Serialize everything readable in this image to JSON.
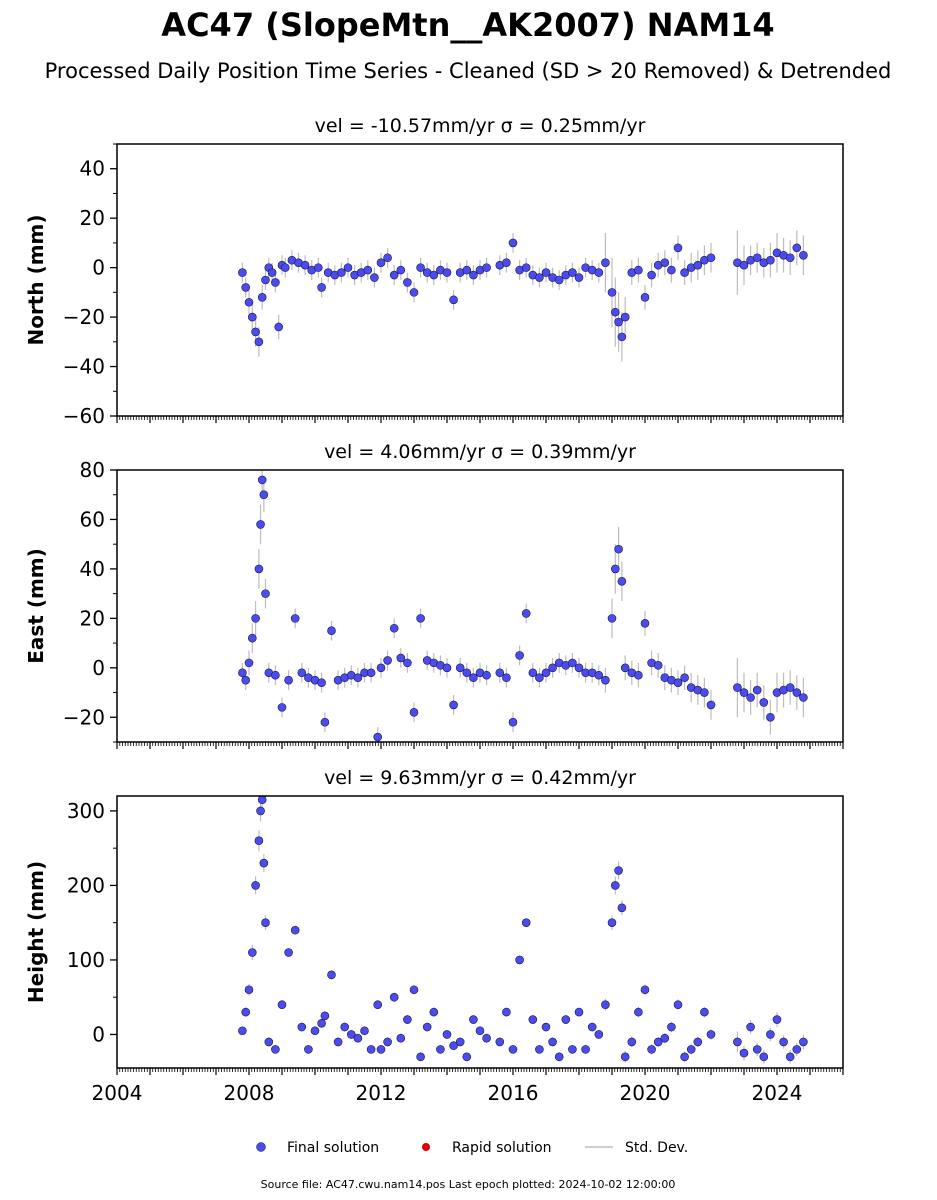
{
  "title": "AC47 (SlopeMtn__AK2007) NAM14",
  "subtitle": "Processed Daily Position Time Series - Cleaned (SD > 20 Removed) & Detrended",
  "legend": {
    "final": "Final solution",
    "rapid": "Rapid solution",
    "std": "Std. Dev."
  },
  "footer": "Source file: AC47.cwu.nam14.pos  Last epoch plotted: 2024-10-02 12:00:00",
  "colors": {
    "final": "#4b4bf0",
    "rapid": "#e00000",
    "std": "#bdbdbd",
    "edge": "#1a1a40"
  },
  "chart_data": [
    {
      "type": "scatter",
      "panel_title": "vel = -10.57mm/yr   σ = 0.25mm/yr",
      "ylabel": "North (mm)",
      "xlim": [
        2004,
        2026
      ],
      "ylim": [
        -60,
        50
      ],
      "yticks": [
        -60,
        -40,
        -20,
        0,
        20,
        40
      ],
      "xticks": [
        2004,
        2008,
        2012,
        2016,
        2020,
        2024
      ],
      "show_x_tick_labels": false,
      "series": [
        {
          "name": "Final solution",
          "x": [
            2007.8,
            2007.9,
            2008.0,
            2008.1,
            2008.2,
            2008.3,
            2008.4,
            2008.5,
            2008.6,
            2008.7,
            2008.8,
            2008.9,
            2009.0,
            2009.1,
            2009.3,
            2009.5,
            2009.7,
            2009.9,
            2010.1,
            2010.2,
            2010.4,
            2010.6,
            2010.8,
            2011.0,
            2011.2,
            2011.4,
            2011.6,
            2011.8,
            2012.0,
            2012.2,
            2012.4,
            2012.6,
            2012.8,
            2013.0,
            2013.2,
            2013.4,
            2013.6,
            2013.8,
            2014.0,
            2014.2,
            2014.4,
            2014.6,
            2014.8,
            2015.0,
            2015.2,
            2015.6,
            2015.8,
            2016.0,
            2016.2,
            2016.4,
            2016.6,
            2016.8,
            2017.0,
            2017.2,
            2017.4,
            2017.6,
            2017.8,
            2018.0,
            2018.2,
            2018.4,
            2018.6,
            2018.8,
            2019.0,
            2019.1,
            2019.2,
            2019.3,
            2019.4,
            2019.6,
            2019.8,
            2020.0,
            2020.2,
            2020.4,
            2020.6,
            2020.8,
            2021.0,
            2021.2,
            2021.4,
            2021.6,
            2021.8,
            2022.0,
            2022.8,
            2023.0,
            2023.2,
            2023.4,
            2023.6,
            2023.8,
            2024.0,
            2024.2,
            2024.4,
            2024.6,
            2024.8
          ],
          "y": [
            -2,
            -8,
            -14,
            -20,
            -26,
            -30,
            -12,
            -5,
            0,
            -2,
            -6,
            -24,
            1,
            0,
            3,
            2,
            1,
            -1,
            0,
            -8,
            -2,
            -3,
            -2,
            0,
            -3,
            -2,
            -1,
            -4,
            2,
            4,
            -3,
            -1,
            -6,
            -10,
            0,
            -2,
            -3,
            -1,
            -2,
            -13,
            -2,
            -1,
            -3,
            -1,
            0,
            1,
            2,
            10,
            -1,
            0,
            -3,
            -4,
            -2,
            -4,
            -5,
            -3,
            -2,
            -4,
            0,
            -1,
            -2,
            2,
            -10,
            -18,
            -22,
            -28,
            -20,
            -2,
            -1,
            -12,
            -3,
            1,
            2,
            -1,
            8,
            -2,
            0,
            1,
            3,
            4,
            2,
            1,
            3,
            4,
            2,
            3,
            6,
            5,
            4,
            8,
            5
          ],
          "err": [
            4,
            4,
            5,
            6,
            6,
            6,
            5,
            4,
            4,
            4,
            4,
            5,
            4,
            4,
            4,
            4,
            4,
            4,
            4,
            4,
            4,
            4,
            4,
            4,
            4,
            4,
            4,
            4,
            4,
            4,
            4,
            4,
            4,
            4,
            4,
            4,
            4,
            4,
            4,
            4,
            4,
            4,
            4,
            4,
            4,
            4,
            4,
            4,
            4,
            4,
            4,
            4,
            4,
            4,
            4,
            4,
            4,
            4,
            4,
            4,
            4,
            12,
            14,
            14,
            12,
            10,
            8,
            5,
            5,
            5,
            5,
            5,
            5,
            5,
            5,
            5,
            6,
            6,
            6,
            6,
            13,
            8,
            6,
            6,
            6,
            7,
            8,
            7,
            7,
            7,
            8
          ]
        }
      ]
    },
    {
      "type": "scatter",
      "panel_title": "vel = 4.06mm/yr   σ = 0.39mm/yr",
      "ylabel": "East (mm)",
      "xlim": [
        2004,
        2026
      ],
      "ylim": [
        -30,
        80
      ],
      "yticks": [
        -20,
        0,
        20,
        40,
        60,
        80
      ],
      "xticks": [
        2004,
        2008,
        2012,
        2016,
        2020,
        2024
      ],
      "show_x_tick_labels": false,
      "series": [
        {
          "name": "Final solution",
          "x": [
            2007.8,
            2007.9,
            2008.0,
            2008.1,
            2008.2,
            2008.3,
            2008.35,
            2008.4,
            2008.45,
            2008.5,
            2008.6,
            2008.8,
            2009.0,
            2009.2,
            2009.4,
            2009.6,
            2009.8,
            2010.0,
            2010.2,
            2010.3,
            2010.5,
            2010.7,
            2010.9,
            2011.1,
            2011.3,
            2011.5,
            2011.7,
            2011.9,
            2012.0,
            2012.2,
            2012.4,
            2012.6,
            2012.8,
            2013.0,
            2013.2,
            2013.4,
            2013.6,
            2013.8,
            2014.0,
            2014.2,
            2014.4,
            2014.6,
            2014.8,
            2015.0,
            2015.2,
            2015.6,
            2015.8,
            2016.0,
            2016.2,
            2016.4,
            2016.6,
            2016.8,
            2017.0,
            2017.2,
            2017.4,
            2017.6,
            2017.8,
            2018.0,
            2018.2,
            2018.4,
            2018.6,
            2018.8,
            2019.0,
            2019.1,
            2019.2,
            2019.3,
            2019.4,
            2019.6,
            2019.8,
            2020.0,
            2020.2,
            2020.4,
            2020.6,
            2020.8,
            2021.0,
            2021.2,
            2021.4,
            2021.6,
            2021.8,
            2022.0,
            2022.8,
            2023.0,
            2023.2,
            2023.4,
            2023.6,
            2023.8,
            2024.0,
            2024.2,
            2024.4,
            2024.6,
            2024.8
          ],
          "y": [
            -2,
            -5,
            2,
            12,
            20,
            40,
            58,
            76,
            70,
            30,
            -2,
            -3,
            -16,
            -5,
            20,
            -2,
            -4,
            -5,
            -6,
            -22,
            15,
            -5,
            -4,
            -3,
            -4,
            -2,
            -2,
            -28,
            0,
            3,
            16,
            4,
            2,
            -18,
            20,
            3,
            2,
            1,
            0,
            -15,
            0,
            -2,
            -4,
            -2,
            -3,
            -2,
            -4,
            -22,
            5,
            22,
            -2,
            -4,
            -2,
            0,
            2,
            1,
            2,
            0,
            -2,
            -2,
            -3,
            -5,
            20,
            40,
            48,
            35,
            0,
            -2,
            -3,
            18,
            2,
            1,
            -4,
            -5,
            -6,
            -4,
            -8,
            -9,
            -10,
            -15,
            -8,
            -10,
            -12,
            -9,
            -14,
            -20,
            -10,
            -9,
            -8,
            -10,
            -12
          ],
          "err": [
            4,
            4,
            5,
            6,
            7,
            8,
            8,
            8,
            7,
            6,
            4,
            4,
            4,
            4,
            4,
            4,
            4,
            4,
            4,
            4,
            4,
            4,
            4,
            4,
            4,
            4,
            4,
            4,
            4,
            4,
            4,
            4,
            4,
            4,
            4,
            4,
            4,
            4,
            4,
            4,
            4,
            4,
            4,
            4,
            4,
            4,
            4,
            4,
            4,
            4,
            4,
            4,
            4,
            4,
            4,
            4,
            4,
            4,
            4,
            4,
            4,
            5,
            8,
            10,
            9,
            8,
            5,
            5,
            5,
            5,
            5,
            5,
            5,
            5,
            5,
            5,
            6,
            6,
            6,
            6,
            12,
            8,
            7,
            7,
            7,
            7,
            8,
            7,
            7,
            7,
            8
          ]
        }
      ]
    },
    {
      "type": "scatter",
      "panel_title": "vel = 9.63mm/yr   σ = 0.42mm/yr",
      "ylabel": "Height (mm)",
      "xlim": [
        2004,
        2026
      ],
      "ylim": [
        -45,
        320
      ],
      "yticks": [
        0,
        100,
        200,
        300
      ],
      "xticks": [
        2004,
        2008,
        2012,
        2016,
        2020,
        2024
      ],
      "show_x_tick_labels": true,
      "series": [
        {
          "name": "Final solution",
          "x": [
            2007.8,
            2007.9,
            2008.0,
            2008.1,
            2008.2,
            2008.3,
            2008.35,
            2008.4,
            2008.45,
            2008.5,
            2008.6,
            2008.8,
            2009.0,
            2009.2,
            2009.4,
            2009.6,
            2009.8,
            2010.0,
            2010.2,
            2010.3,
            2010.5,
            2010.7,
            2010.9,
            2011.1,
            2011.3,
            2011.5,
            2011.7,
            2011.9,
            2012.0,
            2012.2,
            2012.4,
            2012.6,
            2012.8,
            2013.0,
            2013.2,
            2013.4,
            2013.6,
            2013.8,
            2014.0,
            2014.2,
            2014.4,
            2014.6,
            2014.8,
            2015.0,
            2015.2,
            2015.6,
            2015.8,
            2016.0,
            2016.2,
            2016.4,
            2016.6,
            2016.8,
            2017.0,
            2017.2,
            2017.4,
            2017.6,
            2017.8,
            2018.0,
            2018.2,
            2018.4,
            2018.6,
            2018.8,
            2019.0,
            2019.1,
            2019.2,
            2019.3,
            2019.4,
            2019.6,
            2019.8,
            2020.0,
            2020.2,
            2020.4,
            2020.6,
            2020.8,
            2021.0,
            2021.2,
            2021.4,
            2021.6,
            2021.8,
            2022.0,
            2022.8,
            2023.0,
            2023.2,
            2023.4,
            2023.6,
            2023.8,
            2024.0,
            2024.2,
            2024.4,
            2024.6,
            2024.8
          ],
          "y": [
            5,
            30,
            60,
            110,
            200,
            260,
            300,
            315,
            230,
            150,
            -10,
            -20,
            40,
            110,
            140,
            10,
            -20,
            5,
            15,
            25,
            80,
            -10,
            10,
            0,
            -5,
            5,
            -20,
            40,
            -20,
            -10,
            50,
            -5,
            20,
            60,
            -30,
            10,
            30,
            -20,
            0,
            -15,
            -10,
            -30,
            20,
            5,
            -5,
            -10,
            30,
            -20,
            100,
            150,
            20,
            -20,
            10,
            -10,
            -30,
            20,
            -20,
            30,
            -20,
            10,
            0,
            40,
            150,
            200,
            220,
            170,
            -30,
            -10,
            30,
            60,
            -20,
            -10,
            -5,
            10,
            40,
            -30,
            -20,
            -10,
            30,
            0,
            -10,
            -25,
            10,
            -20,
            -30,
            0,
            20,
            -10,
            -30,
            -20,
            -10
          ],
          "err": [
            5,
            6,
            8,
            10,
            12,
            14,
            14,
            14,
            12,
            10,
            6,
            6,
            6,
            6,
            6,
            6,
            6,
            6,
            6,
            6,
            6,
            6,
            6,
            6,
            6,
            6,
            6,
            6,
            6,
            6,
            6,
            6,
            6,
            6,
            6,
            6,
            6,
            6,
            6,
            6,
            6,
            6,
            6,
            6,
            6,
            6,
            6,
            6,
            6,
            6,
            6,
            6,
            6,
            6,
            6,
            6,
            6,
            6,
            6,
            6,
            6,
            8,
            10,
            12,
            12,
            10,
            8,
            7,
            7,
            7,
            7,
            7,
            7,
            7,
            7,
            7,
            7,
            7,
            7,
            7,
            14,
            10,
            9,
            9,
            9,
            9,
            10,
            9,
            9,
            9,
            10
          ]
        }
      ]
    }
  ]
}
